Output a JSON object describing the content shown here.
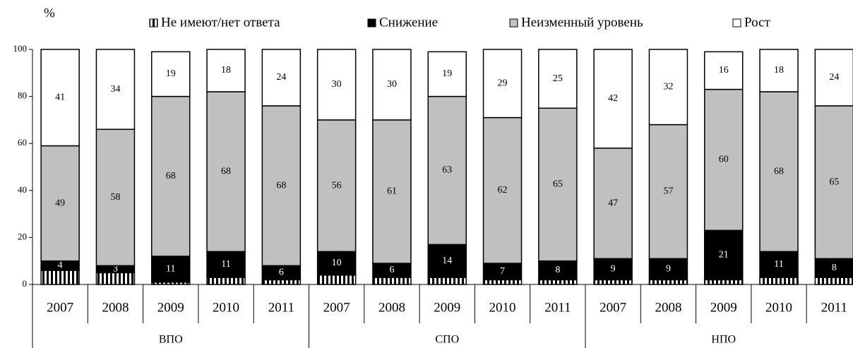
{
  "chart_data": {
    "type": "stacked_bar",
    "y_label": "%",
    "categories": [
      "2007",
      "2008",
      "2009",
      "2010",
      "2011",
      "2007",
      "2008",
      "2009",
      "2010",
      "2011",
      "2007",
      "2008",
      "2009",
      "2010",
      "2011"
    ],
    "groups": [
      "ВПО",
      "СПО",
      "НПО"
    ],
    "ylim": [
      0,
      100
    ],
    "yticks": [
      0,
      20,
      40,
      60,
      80,
      100
    ],
    "series": [
      {
        "name": "Не имеют/нет ответа",
        "color": "striped",
        "values": [
          6,
          5,
          1,
          3,
          2,
          4,
          3,
          3,
          2,
          2,
          2,
          2,
          2,
          3,
          3
        ]
      },
      {
        "name": "Снижение",
        "color": "#000000",
        "values": [
          4,
          3,
          11,
          11,
          6,
          10,
          6,
          14,
          7,
          8,
          9,
          9,
          21,
          11,
          8
        ]
      },
      {
        "name": "Неизменный уровень",
        "color": "#c0c0c0",
        "values": [
          49,
          58,
          68,
          68,
          68,
          56,
          61,
          63,
          62,
          65,
          47,
          57,
          60,
          68,
          65
        ]
      },
      {
        "name": "Рост",
        "color": "#ffffff",
        "values": [
          41,
          34,
          19,
          18,
          24,
          30,
          30,
          19,
          29,
          25,
          42,
          32,
          16,
          18,
          24
        ]
      }
    ]
  }
}
